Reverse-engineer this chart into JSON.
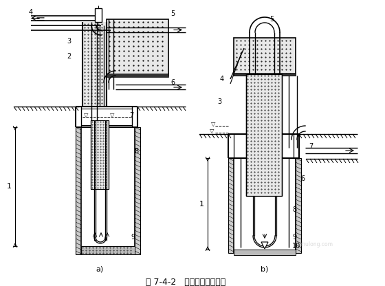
{
  "title": "图 7-4-2   吸泥机清孔示意图",
  "bg_color": "#ffffff",
  "label_color": "#000000",
  "line_color": "#000000",
  "label_a": "a)",
  "label_b": "b)",
  "fig_width": 5.6,
  "fig_height": 4.16,
  "dpi": 100
}
